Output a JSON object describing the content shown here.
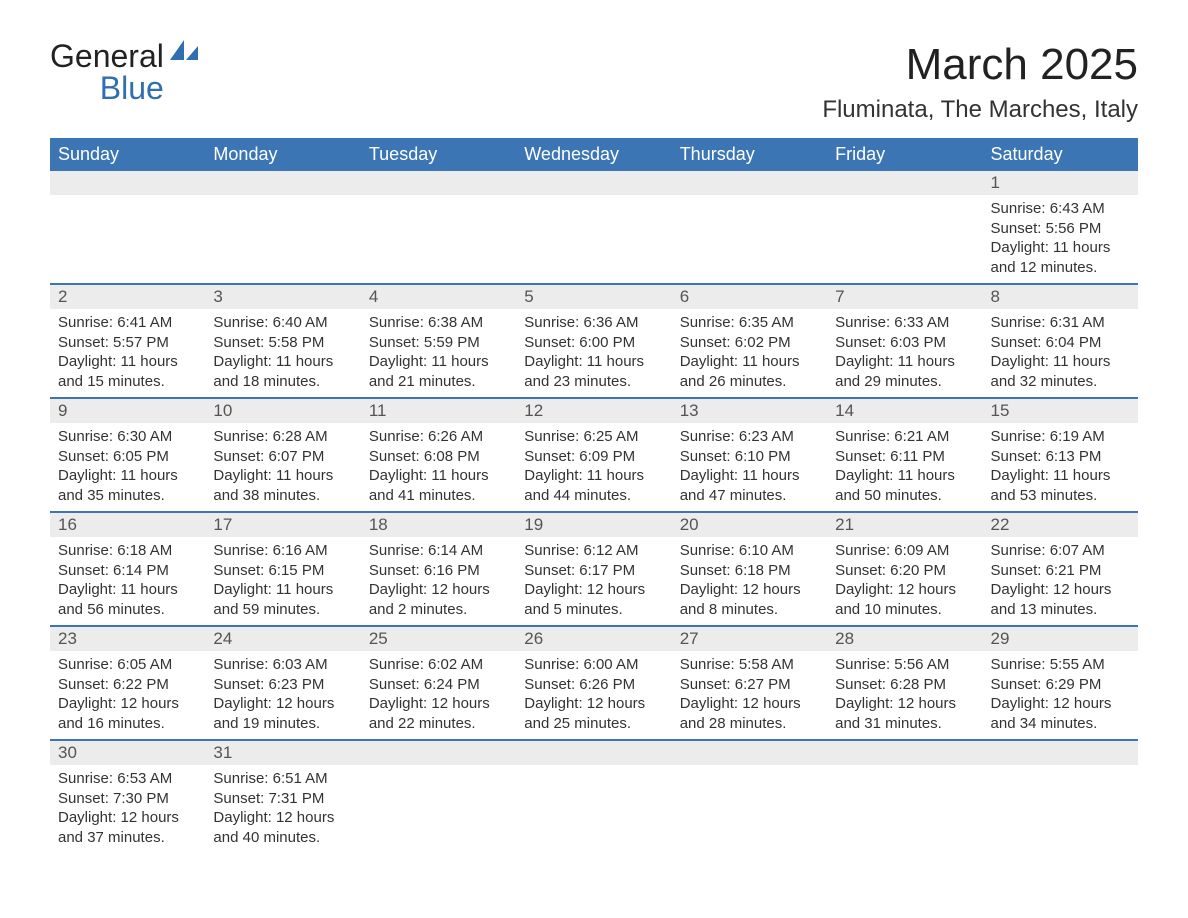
{
  "logo": {
    "word1": "General",
    "word2": "Blue"
  },
  "title": "March 2025",
  "location": "Fluminata, The Marches, Italy",
  "colors": {
    "header_bg": "#3b75b3",
    "header_text": "#ffffff",
    "daynum_bg": "#ececec",
    "row_border": "#3b75b3",
    "body_text": "#333333"
  },
  "typography": {
    "title_fontsize": 44,
    "location_fontsize": 24,
    "header_fontsize": 18,
    "daynum_fontsize": 17,
    "detail_fontsize": 15
  },
  "day_headers": [
    "Sunday",
    "Monday",
    "Tuesday",
    "Wednesday",
    "Thursday",
    "Friday",
    "Saturday"
  ],
  "weeks": [
    [
      null,
      null,
      null,
      null,
      null,
      null,
      {
        "n": "1",
        "sr": "Sunrise: 6:43 AM",
        "ss": "Sunset: 5:56 PM",
        "d1": "Daylight: 11 hours",
        "d2": "and 12 minutes."
      }
    ],
    [
      {
        "n": "2",
        "sr": "Sunrise: 6:41 AM",
        "ss": "Sunset: 5:57 PM",
        "d1": "Daylight: 11 hours",
        "d2": "and 15 minutes."
      },
      {
        "n": "3",
        "sr": "Sunrise: 6:40 AM",
        "ss": "Sunset: 5:58 PM",
        "d1": "Daylight: 11 hours",
        "d2": "and 18 minutes."
      },
      {
        "n": "4",
        "sr": "Sunrise: 6:38 AM",
        "ss": "Sunset: 5:59 PM",
        "d1": "Daylight: 11 hours",
        "d2": "and 21 minutes."
      },
      {
        "n": "5",
        "sr": "Sunrise: 6:36 AM",
        "ss": "Sunset: 6:00 PM",
        "d1": "Daylight: 11 hours",
        "d2": "and 23 minutes."
      },
      {
        "n": "6",
        "sr": "Sunrise: 6:35 AM",
        "ss": "Sunset: 6:02 PM",
        "d1": "Daylight: 11 hours",
        "d2": "and 26 minutes."
      },
      {
        "n": "7",
        "sr": "Sunrise: 6:33 AM",
        "ss": "Sunset: 6:03 PM",
        "d1": "Daylight: 11 hours",
        "d2": "and 29 minutes."
      },
      {
        "n": "8",
        "sr": "Sunrise: 6:31 AM",
        "ss": "Sunset: 6:04 PM",
        "d1": "Daylight: 11 hours",
        "d2": "and 32 minutes."
      }
    ],
    [
      {
        "n": "9",
        "sr": "Sunrise: 6:30 AM",
        "ss": "Sunset: 6:05 PM",
        "d1": "Daylight: 11 hours",
        "d2": "and 35 minutes."
      },
      {
        "n": "10",
        "sr": "Sunrise: 6:28 AM",
        "ss": "Sunset: 6:07 PM",
        "d1": "Daylight: 11 hours",
        "d2": "and 38 minutes."
      },
      {
        "n": "11",
        "sr": "Sunrise: 6:26 AM",
        "ss": "Sunset: 6:08 PM",
        "d1": "Daylight: 11 hours",
        "d2": "and 41 minutes."
      },
      {
        "n": "12",
        "sr": "Sunrise: 6:25 AM",
        "ss": "Sunset: 6:09 PM",
        "d1": "Daylight: 11 hours",
        "d2": "and 44 minutes."
      },
      {
        "n": "13",
        "sr": "Sunrise: 6:23 AM",
        "ss": "Sunset: 6:10 PM",
        "d1": "Daylight: 11 hours",
        "d2": "and 47 minutes."
      },
      {
        "n": "14",
        "sr": "Sunrise: 6:21 AM",
        "ss": "Sunset: 6:11 PM",
        "d1": "Daylight: 11 hours",
        "d2": "and 50 minutes."
      },
      {
        "n": "15",
        "sr": "Sunrise: 6:19 AM",
        "ss": "Sunset: 6:13 PM",
        "d1": "Daylight: 11 hours",
        "d2": "and 53 minutes."
      }
    ],
    [
      {
        "n": "16",
        "sr": "Sunrise: 6:18 AM",
        "ss": "Sunset: 6:14 PM",
        "d1": "Daylight: 11 hours",
        "d2": "and 56 minutes."
      },
      {
        "n": "17",
        "sr": "Sunrise: 6:16 AM",
        "ss": "Sunset: 6:15 PM",
        "d1": "Daylight: 11 hours",
        "d2": "and 59 minutes."
      },
      {
        "n": "18",
        "sr": "Sunrise: 6:14 AM",
        "ss": "Sunset: 6:16 PM",
        "d1": "Daylight: 12 hours",
        "d2": "and 2 minutes."
      },
      {
        "n": "19",
        "sr": "Sunrise: 6:12 AM",
        "ss": "Sunset: 6:17 PM",
        "d1": "Daylight: 12 hours",
        "d2": "and 5 minutes."
      },
      {
        "n": "20",
        "sr": "Sunrise: 6:10 AM",
        "ss": "Sunset: 6:18 PM",
        "d1": "Daylight: 12 hours",
        "d2": "and 8 minutes."
      },
      {
        "n": "21",
        "sr": "Sunrise: 6:09 AM",
        "ss": "Sunset: 6:20 PM",
        "d1": "Daylight: 12 hours",
        "d2": "and 10 minutes."
      },
      {
        "n": "22",
        "sr": "Sunrise: 6:07 AM",
        "ss": "Sunset: 6:21 PM",
        "d1": "Daylight: 12 hours",
        "d2": "and 13 minutes."
      }
    ],
    [
      {
        "n": "23",
        "sr": "Sunrise: 6:05 AM",
        "ss": "Sunset: 6:22 PM",
        "d1": "Daylight: 12 hours",
        "d2": "and 16 minutes."
      },
      {
        "n": "24",
        "sr": "Sunrise: 6:03 AM",
        "ss": "Sunset: 6:23 PM",
        "d1": "Daylight: 12 hours",
        "d2": "and 19 minutes."
      },
      {
        "n": "25",
        "sr": "Sunrise: 6:02 AM",
        "ss": "Sunset: 6:24 PM",
        "d1": "Daylight: 12 hours",
        "d2": "and 22 minutes."
      },
      {
        "n": "26",
        "sr": "Sunrise: 6:00 AM",
        "ss": "Sunset: 6:26 PM",
        "d1": "Daylight: 12 hours",
        "d2": "and 25 minutes."
      },
      {
        "n": "27",
        "sr": "Sunrise: 5:58 AM",
        "ss": "Sunset: 6:27 PM",
        "d1": "Daylight: 12 hours",
        "d2": "and 28 minutes."
      },
      {
        "n": "28",
        "sr": "Sunrise: 5:56 AM",
        "ss": "Sunset: 6:28 PM",
        "d1": "Daylight: 12 hours",
        "d2": "and 31 minutes."
      },
      {
        "n": "29",
        "sr": "Sunrise: 5:55 AM",
        "ss": "Sunset: 6:29 PM",
        "d1": "Daylight: 12 hours",
        "d2": "and 34 minutes."
      }
    ],
    [
      {
        "n": "30",
        "sr": "Sunrise: 6:53 AM",
        "ss": "Sunset: 7:30 PM",
        "d1": "Daylight: 12 hours",
        "d2": "and 37 minutes."
      },
      {
        "n": "31",
        "sr": "Sunrise: 6:51 AM",
        "ss": "Sunset: 7:31 PM",
        "d1": "Daylight: 12 hours",
        "d2": "and 40 minutes."
      },
      null,
      null,
      null,
      null,
      null
    ]
  ]
}
